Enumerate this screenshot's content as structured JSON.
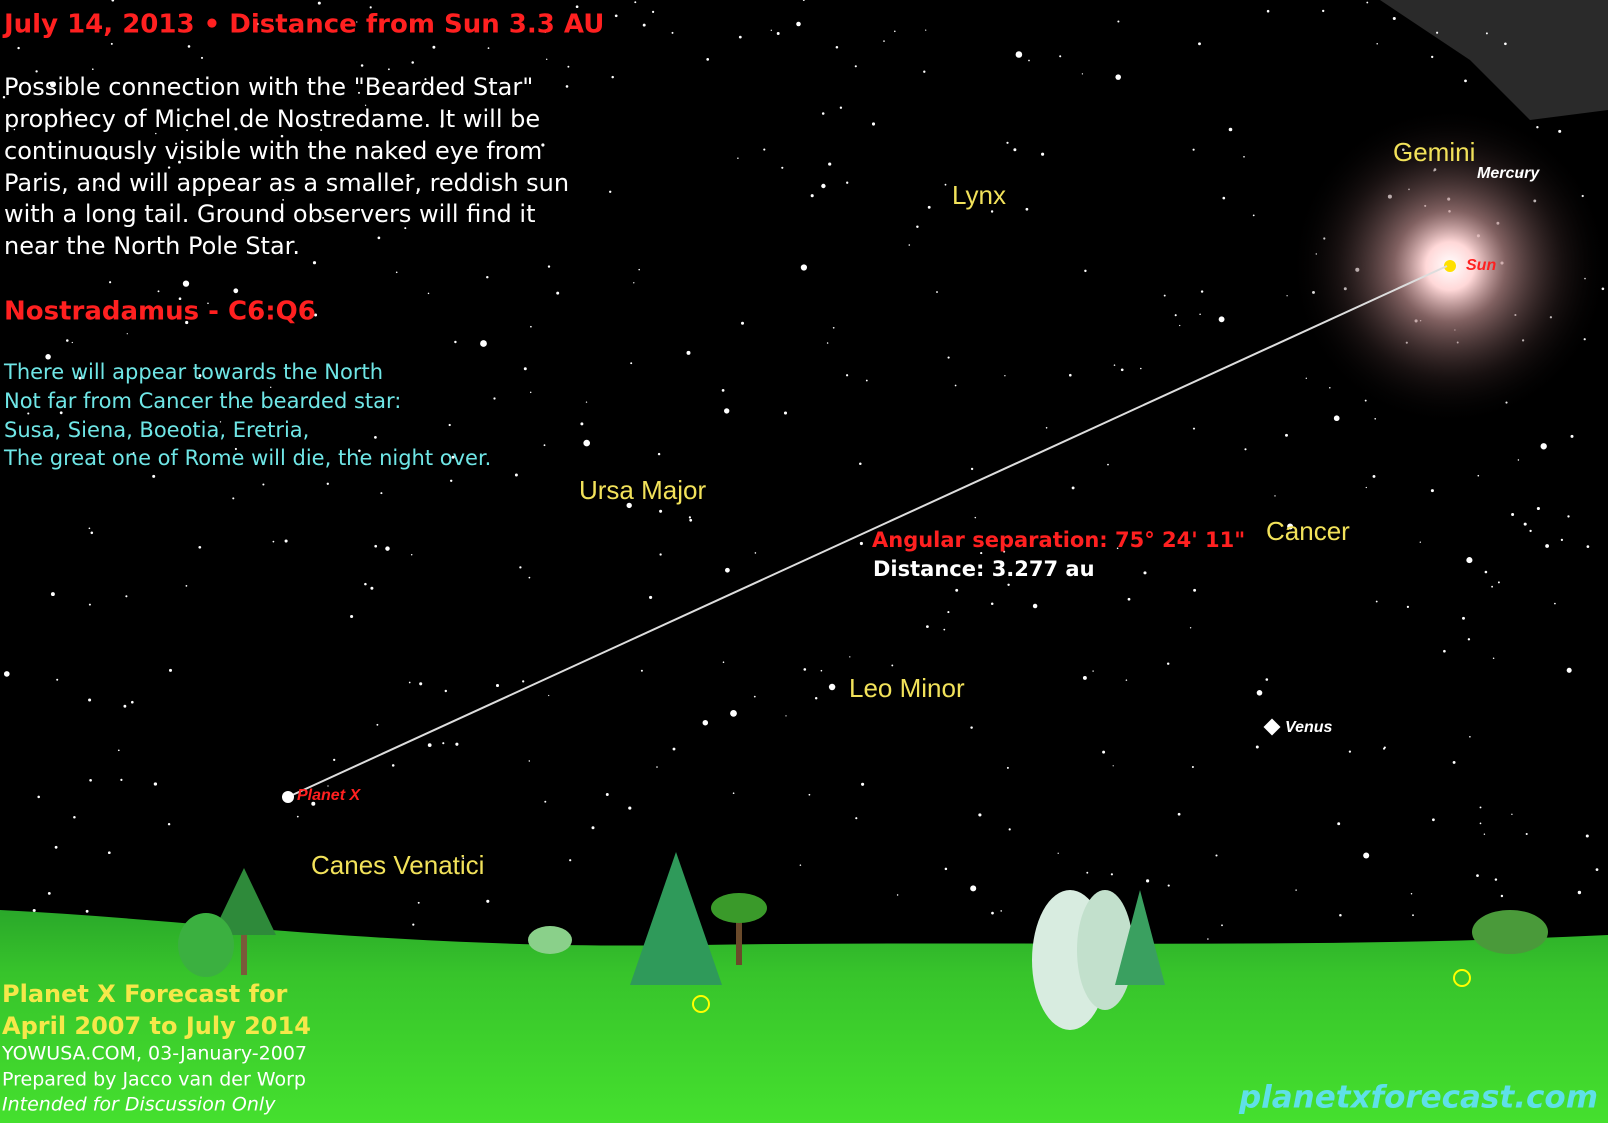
{
  "header": {
    "title": "July 14, 2013 • Distance from Sun 3.3 AU",
    "description": [
      "Possible connection with the \"Bearded Star\"",
      "prophecy of Michel de Nostredame. It will be",
      "continuously visible with the naked eye from",
      "Paris, and will appear as a smaller, reddish sun",
      "with a long tail. Ground observers will find it",
      "near the North Pole Star."
    ]
  },
  "quote": {
    "title": "Nostradamus - C6:Q6",
    "lines": [
      "There will appear towards the North",
      "Not far from Cancer the bearded star:",
      "Susa, Siena, Boeotia, Eretria,",
      "The great one of Rome will die, the night over."
    ]
  },
  "sky": {
    "constellations": [
      "Lynx",
      "Gemini",
      "Ursa Major",
      "Cancer",
      "Leo Minor",
      "Canes Venatici"
    ],
    "objects": {
      "sun": "Sun",
      "mercury": "Mercury",
      "venus": "Venus",
      "planet_x": "Planet X"
    },
    "measurement": {
      "angular_separation": "Angular separation: 75° 24' 11\"",
      "distance": "Distance: 3.277 au"
    }
  },
  "footer": {
    "title_lines": [
      "Planet X Forecast for",
      "April 2007 to July 2014"
    ],
    "credits": [
      "YOWUSA.COM, 03-January-2007",
      "Prepared by Jacco van der Worp",
      "Intended for Discussion Only"
    ],
    "website": "planetxforecast.com"
  }
}
